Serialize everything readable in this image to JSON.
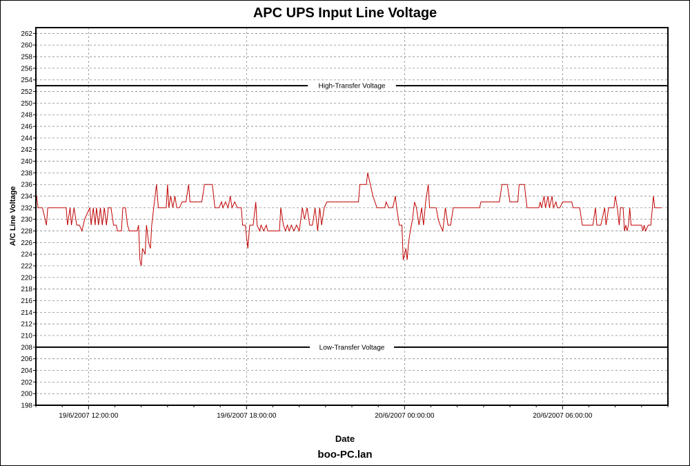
{
  "chart_data": {
    "type": "line",
    "title": "APC UPS Input Line Voltage",
    "xlabel": "Date",
    "ylabel": "A/C Line Voltage",
    "footer": "boo-PC.lan",
    "ylim": [
      198,
      263
    ],
    "ytick_step": 2,
    "x_range_hours": [
      10.0,
      34.0
    ],
    "x_ticks": [
      {
        "hour": 12,
        "label": "19/6/2007 12:00:00"
      },
      {
        "hour": 18,
        "label": "19/6/2007 18:00:00"
      },
      {
        "hour": 24,
        "label": "20/6/2007 00:00:00"
      },
      {
        "hour": 30,
        "label": "20/6/2007 06:00:00"
      }
    ],
    "grid": true,
    "reference_lines": [
      {
        "label": "High-Transfer Voltage",
        "value": 253
      },
      {
        "label": "Low-Transfer Voltage",
        "value": 208
      }
    ],
    "series": [
      {
        "color": "#c00000",
        "points": [
          [
            10.03,
            234
          ],
          [
            10.08,
            232
          ],
          [
            10.25,
            232
          ],
          [
            10.4,
            229
          ],
          [
            10.45,
            232
          ],
          [
            11.15,
            232
          ],
          [
            11.2,
            229
          ],
          [
            11.3,
            232
          ],
          [
            11.35,
            229
          ],
          [
            11.45,
            232
          ],
          [
            11.55,
            229
          ],
          [
            11.65,
            229
          ],
          [
            11.75,
            228
          ],
          [
            11.85,
            230
          ],
          [
            12.05,
            232
          ],
          [
            12.1,
            229
          ],
          [
            12.18,
            232
          ],
          [
            12.25,
            229
          ],
          [
            12.3,
            232
          ],
          [
            12.38,
            229
          ],
          [
            12.45,
            232
          ],
          [
            12.52,
            229
          ],
          [
            12.6,
            232
          ],
          [
            12.68,
            229
          ],
          [
            12.75,
            232
          ],
          [
            12.85,
            232
          ],
          [
            12.95,
            229
          ],
          [
            13.05,
            229
          ],
          [
            13.1,
            228
          ],
          [
            13.25,
            228
          ],
          [
            13.3,
            232
          ],
          [
            13.4,
            232
          ],
          [
            13.48,
            229
          ],
          [
            13.55,
            228
          ],
          [
            13.65,
            228
          ],
          [
            13.85,
            228
          ],
          [
            13.9,
            229
          ],
          [
            13.95,
            223
          ],
          [
            14.0,
            222
          ],
          [
            14.05,
            225
          ],
          [
            14.15,
            224
          ],
          [
            14.2,
            229
          ],
          [
            14.28,
            226
          ],
          [
            14.35,
            225
          ],
          [
            14.4,
            229
          ],
          [
            14.5,
            233
          ],
          [
            14.58,
            236
          ],
          [
            14.65,
            232
          ],
          [
            14.95,
            232
          ],
          [
            15.0,
            236
          ],
          [
            15.05,
            232
          ],
          [
            15.12,
            234
          ],
          [
            15.2,
            232
          ],
          [
            15.28,
            234
          ],
          [
            15.35,
            232
          ],
          [
            15.45,
            232
          ],
          [
            15.55,
            233
          ],
          [
            15.7,
            233
          ],
          [
            15.8,
            236
          ],
          [
            15.85,
            233
          ],
          [
            16.3,
            233
          ],
          [
            16.4,
            236
          ],
          [
            16.7,
            236
          ],
          [
            16.8,
            232
          ],
          [
            16.95,
            232
          ],
          [
            17.05,
            233
          ],
          [
            17.1,
            232
          ],
          [
            17.2,
            233
          ],
          [
            17.3,
            232
          ],
          [
            17.38,
            234
          ],
          [
            17.45,
            232
          ],
          [
            17.55,
            233
          ],
          [
            17.65,
            232
          ],
          [
            17.8,
            232
          ],
          [
            17.85,
            229
          ],
          [
            17.95,
            229
          ],
          [
            18.05,
            225
          ],
          [
            18.12,
            229
          ],
          [
            18.25,
            229
          ],
          [
            18.35,
            233
          ],
          [
            18.4,
            229
          ],
          [
            18.5,
            228
          ],
          [
            18.55,
            229
          ],
          [
            18.65,
            228
          ],
          [
            18.75,
            229
          ],
          [
            18.8,
            228
          ],
          [
            19.25,
            228
          ],
          [
            19.3,
            232
          ],
          [
            19.4,
            229
          ],
          [
            19.48,
            228
          ],
          [
            19.55,
            229
          ],
          [
            19.62,
            228
          ],
          [
            19.7,
            229
          ],
          [
            19.8,
            228
          ],
          [
            19.9,
            229
          ],
          [
            20.0,
            228
          ],
          [
            20.12,
            232
          ],
          [
            20.2,
            230
          ],
          [
            20.3,
            232
          ],
          [
            20.4,
            229
          ],
          [
            20.5,
            229
          ],
          [
            20.6,
            232
          ],
          [
            20.7,
            228
          ],
          [
            20.78,
            232
          ],
          [
            20.85,
            229
          ],
          [
            20.95,
            232
          ],
          [
            21.05,
            233
          ],
          [
            22.25,
            233
          ],
          [
            22.3,
            236
          ],
          [
            22.55,
            236
          ],
          [
            22.6,
            238
          ],
          [
            22.7,
            236
          ],
          [
            22.8,
            234
          ],
          [
            22.95,
            232
          ],
          [
            23.25,
            232
          ],
          [
            23.3,
            233
          ],
          [
            23.4,
            232
          ],
          [
            23.55,
            232
          ],
          [
            23.65,
            234
          ],
          [
            23.7,
            232
          ],
          [
            23.8,
            229
          ],
          [
            23.9,
            229
          ],
          [
            23.95,
            223
          ],
          [
            24.05,
            225
          ],
          [
            24.1,
            223
          ],
          [
            24.15,
            226
          ],
          [
            24.22,
            228
          ],
          [
            24.3,
            230
          ],
          [
            24.38,
            233
          ],
          [
            24.45,
            232
          ],
          [
            24.55,
            229
          ],
          [
            24.65,
            232
          ],
          [
            24.72,
            229
          ],
          [
            24.8,
            233
          ],
          [
            24.9,
            236
          ],
          [
            24.95,
            232
          ],
          [
            25.2,
            232
          ],
          [
            25.28,
            230
          ],
          [
            25.35,
            229
          ],
          [
            25.45,
            228
          ],
          [
            25.55,
            232
          ],
          [
            25.65,
            229
          ],
          [
            25.75,
            229
          ],
          [
            25.85,
            232
          ],
          [
            26.85,
            232
          ],
          [
            26.9,
            233
          ],
          [
            27.6,
            233
          ],
          [
            27.7,
            236
          ],
          [
            27.9,
            236
          ],
          [
            28.0,
            233
          ],
          [
            28.3,
            233
          ],
          [
            28.35,
            236
          ],
          [
            28.55,
            236
          ],
          [
            28.65,
            232
          ],
          [
            29.1,
            232
          ],
          [
            29.15,
            233
          ],
          [
            29.2,
            232
          ],
          [
            29.3,
            234
          ],
          [
            29.35,
            232
          ],
          [
            29.45,
            234
          ],
          [
            29.5,
            232
          ],
          [
            29.6,
            234
          ],
          [
            29.65,
            232
          ],
          [
            29.75,
            233
          ],
          [
            29.8,
            232
          ],
          [
            29.9,
            232
          ],
          [
            30.0,
            233
          ],
          [
            30.35,
            233
          ],
          [
            30.4,
            232
          ],
          [
            30.65,
            232
          ],
          [
            30.75,
            229
          ],
          [
            31.15,
            229
          ],
          [
            31.25,
            232
          ],
          [
            31.3,
            229
          ],
          [
            31.45,
            229
          ],
          [
            31.6,
            232
          ],
          [
            31.65,
            229
          ],
          [
            31.75,
            232
          ],
          [
            31.95,
            232
          ],
          [
            32.0,
            234
          ],
          [
            32.08,
            232
          ],
          [
            32.15,
            229
          ],
          [
            32.2,
            232
          ],
          [
            32.3,
            232
          ],
          [
            32.35,
            228
          ],
          [
            32.4,
            229
          ],
          [
            32.45,
            228
          ],
          [
            32.5,
            229
          ],
          [
            32.55,
            232
          ],
          [
            32.6,
            229
          ],
          [
            33.0,
            229
          ],
          [
            33.05,
            228
          ],
          [
            33.1,
            229
          ],
          [
            33.15,
            228
          ],
          [
            33.25,
            229
          ],
          [
            33.35,
            229
          ],
          [
            33.45,
            234
          ],
          [
            33.5,
            232
          ],
          [
            33.65,
            232
          ],
          [
            33.75,
            232
          ]
        ]
      }
    ]
  }
}
